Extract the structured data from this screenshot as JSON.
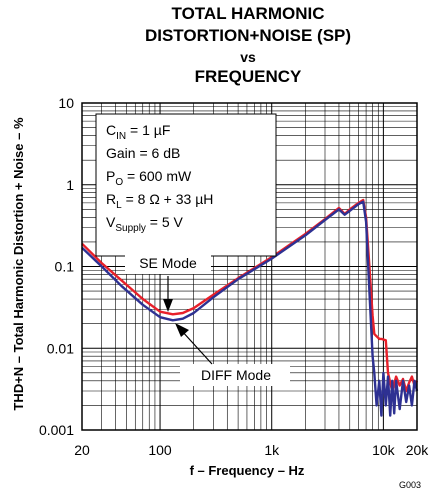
{
  "chart_data": {
    "type": "line",
    "title_lines": [
      "TOTAL HARMONIC",
      "DISTORTION+NOISE (SP)",
      "vs",
      "FREQUENCY"
    ],
    "xlabel": "f – Frequency – Hz",
    "ylabel": "THD+N – Total Harmonic Distortion + Noise – %",
    "xscale": "log",
    "yscale": "log",
    "xlim": [
      20,
      20000
    ],
    "ylim": [
      0.001,
      10
    ],
    "x_ticks": [
      {
        "value": 20,
        "label": "20"
      },
      {
        "value": 100,
        "label": "100"
      },
      {
        "value": 1000,
        "label": "1k"
      },
      {
        "value": 10000,
        "label": "10k"
      },
      {
        "value": 20000,
        "label": "20k"
      }
    ],
    "y_ticks": [
      {
        "value": 10,
        "label": "10"
      },
      {
        "value": 1,
        "label": "1"
      },
      {
        "value": 0.1,
        "label": "0.1"
      },
      {
        "value": 0.01,
        "label": "0.01"
      },
      {
        "value": 0.001,
        "label": "0.001"
      }
    ],
    "grid": true,
    "conditions": {
      "cin": {
        "pre": "C",
        "sub": "IN",
        "post": " = 1 µF"
      },
      "gain": "Gain = 6 dB",
      "po": {
        "pre": "P",
        "sub": "O",
        "post": " = 600 mW"
      },
      "rl": {
        "pre": "R",
        "sub": "L",
        "post": " = 8 Ω + 33 µH"
      },
      "vsupply": {
        "pre": "V",
        "sub": "Supply",
        "post": " = 5 V"
      }
    },
    "annotations": {
      "se": "SE Mode",
      "diff": "DIFF Mode"
    },
    "code": "G003",
    "series": [
      {
        "name": "SE Mode",
        "color": "#e8202a",
        "x": [
          20,
          30,
          45,
          70,
          100,
          130,
          160,
          200,
          300,
          500,
          1000,
          2000,
          3000,
          4000,
          4500,
          5000,
          5500,
          6000,
          6600,
          7000,
          7500,
          8000,
          8300,
          8700,
          9200,
          9600,
          10500,
          11000,
          12000,
          13000,
          14000,
          15000,
          16000,
          17000,
          18000,
          19000,
          20000
        ],
        "y": [
          0.19,
          0.11,
          0.068,
          0.04,
          0.028,
          0.026,
          0.027,
          0.031,
          0.045,
          0.072,
          0.13,
          0.25,
          0.38,
          0.52,
          0.44,
          0.5,
          0.55,
          0.6,
          0.65,
          0.4,
          0.1,
          0.025,
          0.015,
          0.014,
          0.013,
          0.013,
          0.0125,
          0.005,
          0.003,
          0.0045,
          0.0035,
          0.0042,
          0.003,
          0.0038,
          0.0045,
          0.0035,
          0.004
        ]
      },
      {
        "name": "DIFF Mode",
        "color": "#2e3192",
        "x": [
          20,
          30,
          45,
          70,
          100,
          130,
          160,
          200,
          300,
          500,
          1000,
          2000,
          3000,
          4000,
          4500,
          5000,
          5500,
          6000,
          6600,
          7000,
          7500,
          8000,
          8300,
          8700,
          9200,
          9600,
          10000,
          10500,
          11000,
          11500,
          12000,
          12500,
          13000,
          14000,
          15000,
          16000,
          17000,
          18000,
          19000,
          20000
        ],
        "y": [
          0.17,
          0.1,
          0.058,
          0.034,
          0.024,
          0.022,
          0.023,
          0.027,
          0.042,
          0.07,
          0.125,
          0.24,
          0.37,
          0.5,
          0.43,
          0.48,
          0.53,
          0.58,
          0.62,
          0.35,
          0.05,
          0.008,
          0.005,
          0.002,
          0.004,
          0.0015,
          0.005,
          0.002,
          0.0045,
          0.0015,
          0.004,
          0.0016,
          0.004,
          0.0018,
          0.004,
          0.0022,
          0.0035,
          0.002,
          0.004,
          0.003
        ]
      }
    ]
  }
}
